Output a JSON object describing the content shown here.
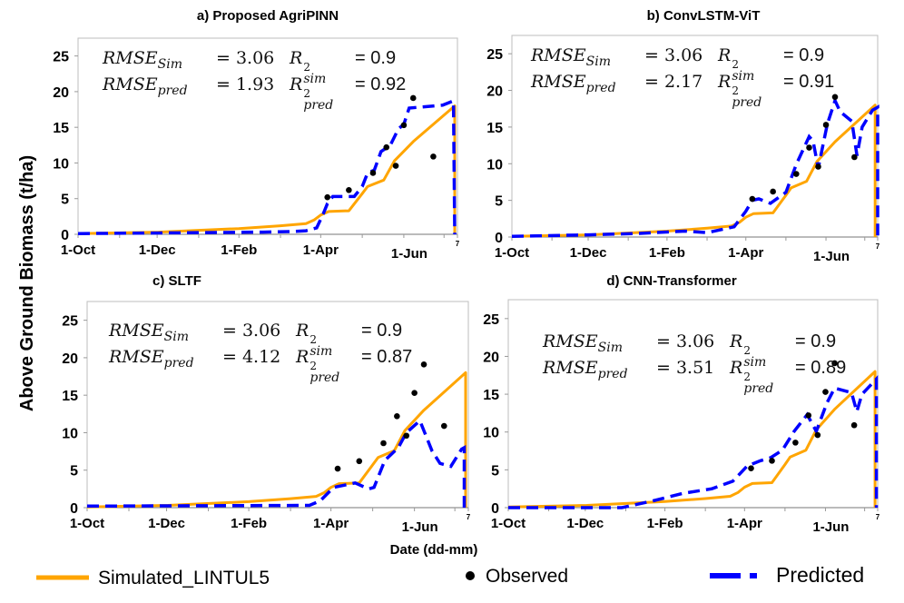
{
  "chart_data": {
    "type": "line",
    "ylabel": "Above Ground Biomass (t/ha)",
    "xlabel": "Date (dd-mm)",
    "ylim": [
      0,
      27.5
    ],
    "xlim": [
      "01-10",
      "11-07"
    ],
    "yticks": [
      0,
      5,
      10,
      15,
      20,
      25
    ],
    "xticks": [
      {
        "date": "01-10",
        "label": "1-Oct"
      },
      {
        "date": "01-12",
        "label": "1-Dec"
      },
      {
        "date": "01-02",
        "label": "1-Feb"
      },
      {
        "date": "01-04",
        "label": "1-Apr"
      },
      {
        "date": "01-06",
        "label": "1-Jun"
      },
      {
        "date": "11-07",
        "label": "7"
      }
    ],
    "minor_xticks": [
      "01-11",
      "01-01",
      "01-03",
      "01-05",
      "01-07"
    ],
    "colors": {
      "simulated": "#FFA500",
      "observed": "#000000",
      "predicted": "#0000FF"
    },
    "legend": {
      "placement": "bottom",
      "entries": [
        {
          "label": "Simulated_LINTUL5",
          "style": "solid-line",
          "color": "#FFA500"
        },
        {
          "label": "Observed",
          "style": "dot",
          "color": "#000000"
        },
        {
          "label": "Predicted",
          "style": "dashed-line",
          "color": "#0000FF"
        }
      ]
    },
    "observed": [
      [
        "06-04",
        5.2
      ],
      [
        "22-04",
        6.2
      ],
      [
        "09-05",
        8.6
      ],
      [
        "19-05",
        12.2
      ],
      [
        "26-05",
        9.6
      ],
      [
        "01-06",
        15.3
      ],
      [
        "08-06",
        19.1
      ],
      [
        "23-06",
        10.9
      ]
    ],
    "simulated": [
      [
        "01-10",
        0.1
      ],
      [
        "30-11",
        0.3
      ],
      [
        "01-02",
        0.8
      ],
      [
        "01-03",
        1.2
      ],
      [
        "20-03",
        1.5
      ],
      [
        "26-03",
        2.0
      ],
      [
        "01-04",
        2.7
      ],
      [
        "07-04",
        3.2
      ],
      [
        "22-04",
        3.3
      ],
      [
        "01-05",
        5.7
      ],
      [
        "05-05",
        6.7
      ],
      [
        "17-05",
        7.6
      ],
      [
        "25-05",
        10.3
      ],
      [
        "08-06",
        13.0
      ],
      [
        "09-07",
        18.0
      ],
      [
        "09-07",
        0
      ]
    ],
    "panels": [
      {
        "title": "a) Proposed AgriPINN",
        "rmse_sim": "3.06",
        "r2_sim": "0.9",
        "rmse_pred": "1.93",
        "r2_pred": "0.92",
        "predicted": [
          [
            "01-10",
            0.1
          ],
          [
            "19-02",
            0.3
          ],
          [
            "10-03",
            0.4
          ],
          [
            "20-03",
            0.5
          ],
          [
            "28-03",
            0.9
          ],
          [
            "03-04",
            2.9
          ],
          [
            "06-04",
            4.3
          ],
          [
            "10-04",
            5.3
          ],
          [
            "26-04",
            5.3
          ],
          [
            "01-05",
            6.7
          ],
          [
            "05-05",
            8.6
          ],
          [
            "10-05",
            9.0
          ],
          [
            "15-05",
            11.6
          ],
          [
            "22-05",
            12.5
          ],
          [
            "28-05",
            14.8
          ],
          [
            "01-06",
            15.4
          ],
          [
            "05-06",
            17.7
          ],
          [
            "30-06",
            18.1
          ],
          [
            "08-07",
            18.7
          ],
          [
            "09-07",
            0
          ]
        ]
      },
      {
        "title": "b) ConvLSTM-ViT",
        "rmse_sim": "3.06",
        "r2_sim": "0.9",
        "rmse_pred": "2.17",
        "r2_pred": "0.91",
        "predicted": [
          [
            "01-10",
            0.1
          ],
          [
            "01-12",
            0.3
          ],
          [
            "10-01",
            0.5
          ],
          [
            "15-02",
            0.8
          ],
          [
            "01-03",
            0.6
          ],
          [
            "22-03",
            1.4
          ],
          [
            "01-04",
            3.5
          ],
          [
            "06-04",
            5.0
          ],
          [
            "11-04",
            5.2
          ],
          [
            "20-04",
            4.6
          ],
          [
            "01-05",
            6.1
          ],
          [
            "09-05",
            9.9
          ],
          [
            "19-05",
            13.7
          ],
          [
            "22-05",
            13.1
          ],
          [
            "26-05",
            9.4
          ],
          [
            "02-06",
            15.4
          ],
          [
            "08-06",
            18.6
          ],
          [
            "12-06",
            17.1
          ],
          [
            "21-06",
            15.8
          ],
          [
            "25-06",
            11.1
          ],
          [
            "29-06",
            15.0
          ],
          [
            "07-07",
            17.3
          ],
          [
            "11-07",
            17.7
          ],
          [
            "11-07",
            0
          ]
        ]
      },
      {
        "title": "c) SLTF",
        "rmse_sim": "3.06",
        "r2_sim": "0.9",
        "rmse_pred": "4.12",
        "r2_pred": "0.87",
        "predicted": [
          [
            "01-10",
            0.2
          ],
          [
            "15-03",
            0.3
          ],
          [
            "23-03",
            0.9
          ],
          [
            "03-04",
            2.7
          ],
          [
            "19-04",
            3.3
          ],
          [
            "29-04",
            2.5
          ],
          [
            "02-05",
            2.7
          ],
          [
            "10-05",
            6.3
          ],
          [
            "20-05",
            8.0
          ],
          [
            "26-05",
            10.0
          ],
          [
            "05-06",
            11.6
          ],
          [
            "14-06",
            7.6
          ],
          [
            "20-06",
            5.9
          ],
          [
            "28-06",
            5.5
          ],
          [
            "06-07",
            7.8
          ],
          [
            "08-07",
            8.0
          ],
          [
            "08-07",
            0
          ]
        ]
      },
      {
        "title": "d) CNN-Transformer",
        "rmse_sim": "3.06",
        "r2_sim": "0.9",
        "rmse_pred": "3.51",
        "r2_pred": "0.89",
        "predicted": [
          [
            "01-10",
            0
          ],
          [
            "29-12",
            0
          ],
          [
            "22-01",
            0.9
          ],
          [
            "15-02",
            1.9
          ],
          [
            "06-03",
            2.5
          ],
          [
            "22-03",
            3.5
          ],
          [
            "03-04",
            5.5
          ],
          [
            "13-04",
            6.2
          ],
          [
            "21-04",
            6.6
          ],
          [
            "30-04",
            7.6
          ],
          [
            "08-05",
            10.1
          ],
          [
            "18-05",
            12.3
          ],
          [
            "25-05",
            10.1
          ],
          [
            "02-06",
            13.8
          ],
          [
            "08-06",
            15.8
          ],
          [
            "21-06",
            15.2
          ],
          [
            "25-06",
            12.7
          ],
          [
            "29-06",
            15.0
          ],
          [
            "10-07",
            17.0
          ],
          [
            "10-07",
            0
          ]
        ]
      }
    ]
  }
}
